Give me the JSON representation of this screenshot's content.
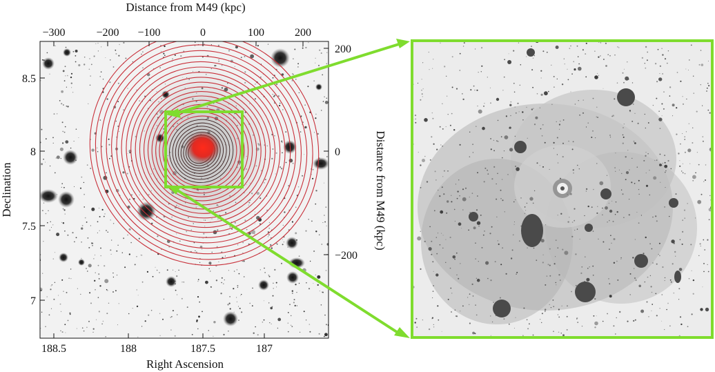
{
  "top_axis": {
    "label": "Distance from M49 (kpc)",
    "ticks": [
      "−300",
      "−200",
      "−100",
      "0",
      "100",
      "200"
    ]
  },
  "bottom_axis": {
    "label": "Right Ascension",
    "ticks": [
      "188.5",
      "188",
      "187.5",
      "187"
    ]
  },
  "left_axis": {
    "label": "Declination",
    "ticks": [
      "8.5",
      "8",
      "7.5",
      "7"
    ]
  },
  "right_axis": {
    "label": "Distance from M49 (kpc)",
    "ticks": [
      "200",
      "0",
      "−200"
    ]
  },
  "colors": {
    "zoom_box": "#7fdc2e",
    "contour": "#c8303a",
    "core": "#ff2a1a",
    "sky": "#f2f2f2"
  }
}
